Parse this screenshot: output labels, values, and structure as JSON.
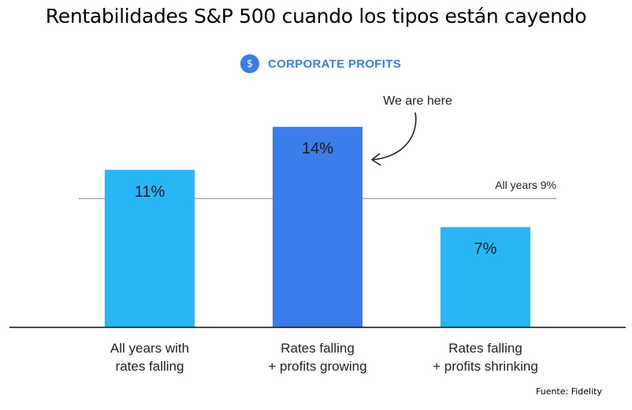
{
  "title": "Rentabilidades S&P 500 cuando los tipos están cayendo",
  "header": {
    "icon": "dollar-icon",
    "icon_glyph": "$",
    "label": "CORPORATE PROFITS"
  },
  "chart_data": {
    "type": "bar",
    "categories": [
      [
        "All years with",
        "rates falling"
      ],
      [
        "Rates falling",
        "+ profits growing"
      ],
      [
        "Rates falling",
        "+ profits shrinking"
      ]
    ],
    "values": [
      11,
      14,
      7
    ],
    "value_labels": [
      "11%",
      "14%",
      "7%"
    ],
    "bar_colors": [
      "#29b6f6",
      "#3a7de8",
      "#29b6f6"
    ],
    "reference_line": {
      "value": 9,
      "label": "All years 9%"
    },
    "annotation": {
      "text": "We are here",
      "points_to_category": 1
    },
    "ylim": [
      0,
      14
    ],
    "grid": false
  },
  "source": "Fuente: Fidelity"
}
